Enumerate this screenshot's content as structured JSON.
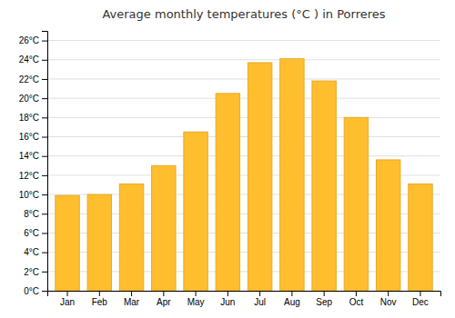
{
  "chart_data": {
    "type": "bar",
    "title": "Average monthly temperatures (°C ) in Porreres",
    "categories": [
      "Jan",
      "Feb",
      "Mar",
      "Apr",
      "May",
      "Jun",
      "Jul",
      "Aug",
      "Sep",
      "Oct",
      "Nov",
      "Dec"
    ],
    "values": [
      9.9,
      10.0,
      11.1,
      13.0,
      16.5,
      20.5,
      23.7,
      24.1,
      21.8,
      18.0,
      13.6,
      11.1
    ],
    "color": "#FFBE2D",
    "ylim": [
      0,
      27
    ],
    "yticks": [
      {
        "value": 0,
        "label": "0°C"
      },
      {
        "value": 2,
        "label": "2°C"
      },
      {
        "value": 4,
        "label": "4°C"
      },
      {
        "value": 6,
        "label": "6°C"
      },
      {
        "value": 8,
        "label": "8°C"
      },
      {
        "value": 10,
        "label": "10°C"
      },
      {
        "value": 12,
        "label": "12°C"
      },
      {
        "value": 14,
        "label": "14°C"
      },
      {
        "value": 16,
        "label": "16°C"
      },
      {
        "value": 18,
        "label": "18°C"
      },
      {
        "value": 20,
        "label": "20°C"
      },
      {
        "value": 22,
        "label": "22°C"
      },
      {
        "value": 24,
        "label": "24°C"
      },
      {
        "value": 26,
        "label": "26°C"
      }
    ],
    "grid": true
  }
}
